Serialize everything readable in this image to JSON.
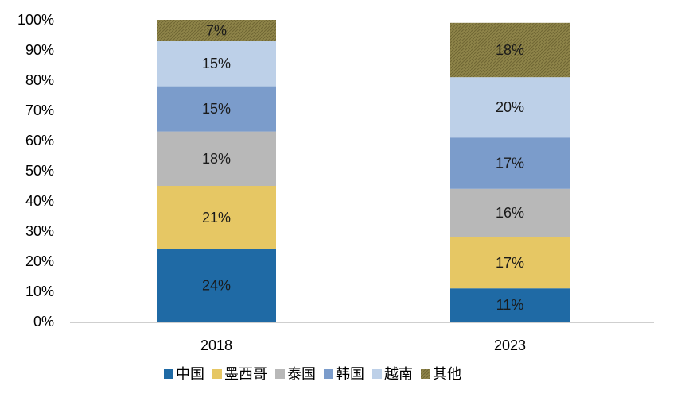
{
  "chart_data": {
    "type": "bar",
    "stacked": true,
    "categories": [
      "2018",
      "2023"
    ],
    "y_ticks": [
      "0%",
      "10%",
      "20%",
      "30%",
      "40%",
      "50%",
      "60%",
      "70%",
      "80%",
      "90%",
      "100%"
    ],
    "ylim": [
      0,
      100
    ],
    "grid": false,
    "legend_position": "bottom",
    "series": [
      {
        "name": "中国",
        "values": [
          24,
          11
        ],
        "labels": [
          "24%",
          "11%"
        ],
        "color": "#1f6aa5",
        "pattern": false
      },
      {
        "name": "墨西哥",
        "values": [
          21,
          17
        ],
        "labels": [
          "21%",
          "17%"
        ],
        "color": "#e6c764",
        "pattern": false
      },
      {
        "name": "泰国",
        "values": [
          18,
          16
        ],
        "labels": [
          "18%",
          "16%"
        ],
        "color": "#b8b8b8",
        "pattern": false
      },
      {
        "name": "韩国",
        "values": [
          15,
          17
        ],
        "labels": [
          "15%",
          "17%"
        ],
        "color": "#7b9ccb",
        "pattern": false
      },
      {
        "name": "越南",
        "values": [
          15,
          20
        ],
        "labels": [
          "15%",
          "20%"
        ],
        "color": "#bdd0e8",
        "pattern": false
      },
      {
        "name": "其他",
        "values": [
          7,
          18
        ],
        "labels": [
          "7%",
          "18%"
        ],
        "color": "#8e8449",
        "pattern": true
      }
    ]
  }
}
